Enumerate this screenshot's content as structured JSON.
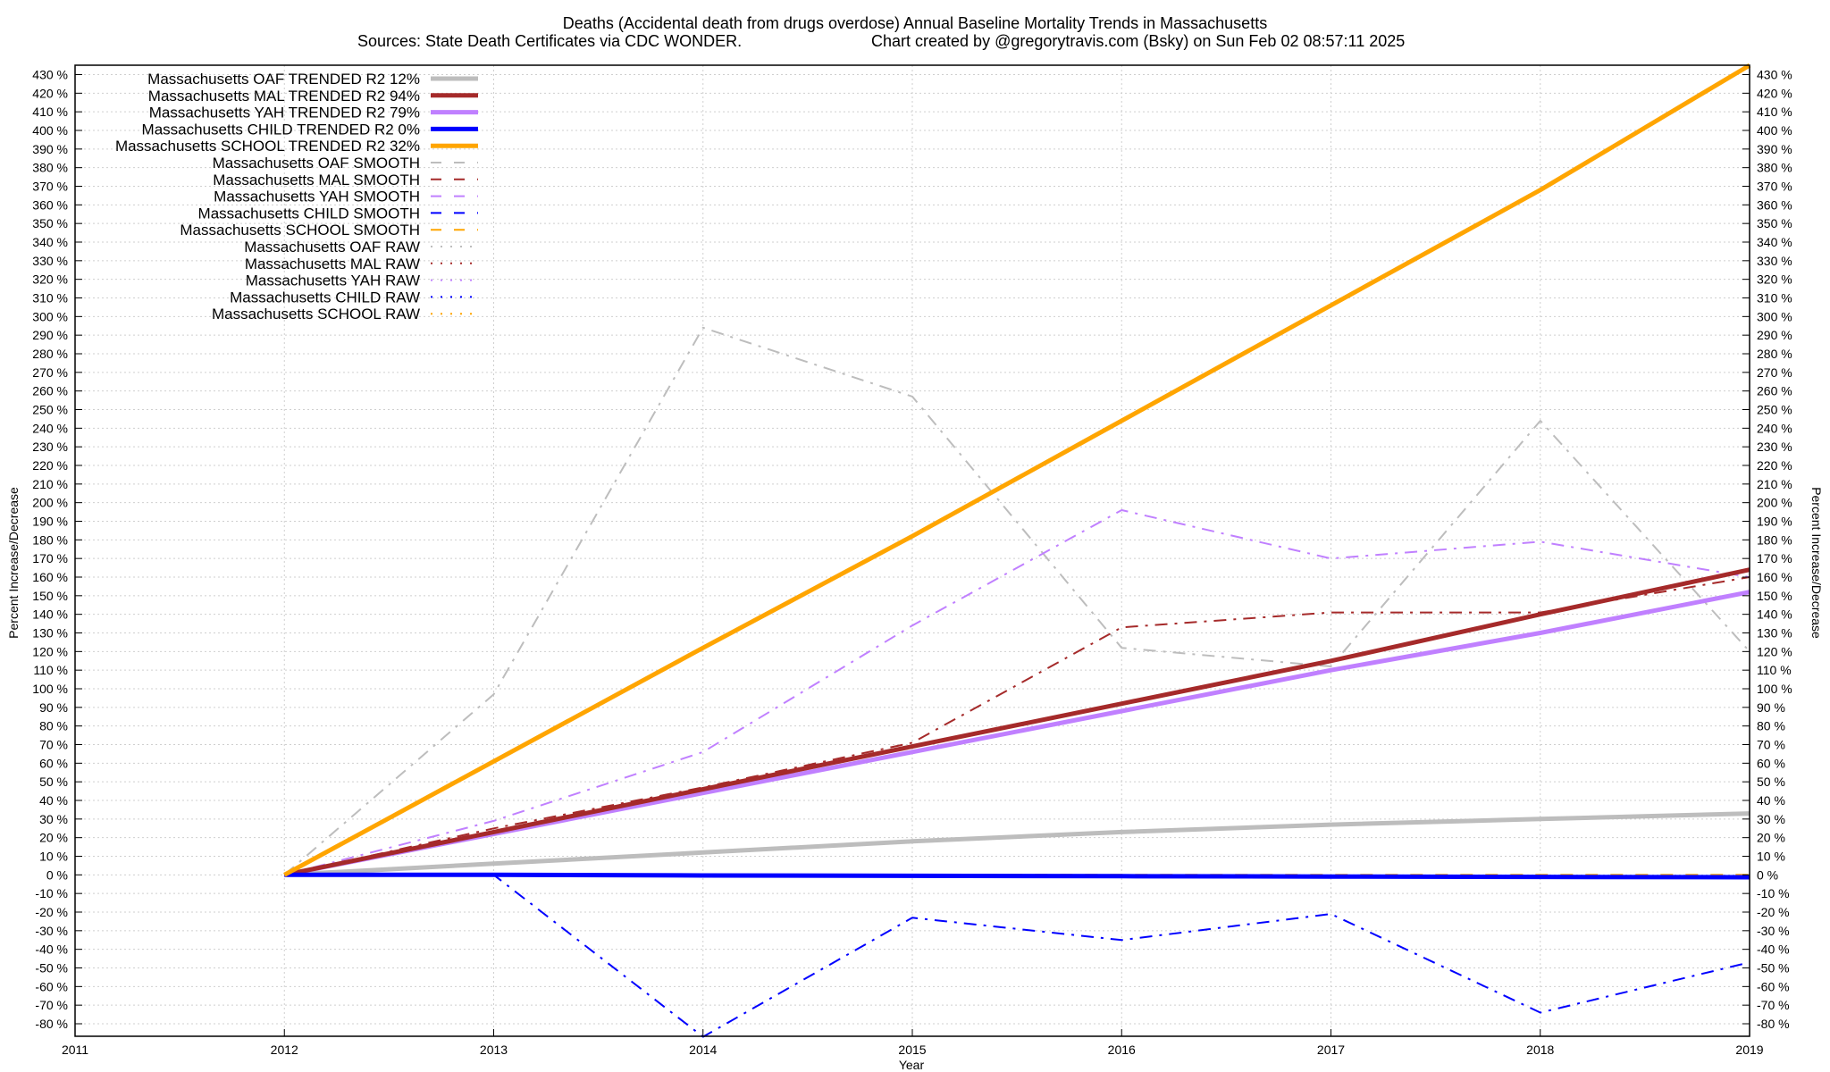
{
  "chart_data": {
    "type": "line",
    "title": "Deaths (Accidental death from drugs overdose)  Annual Baseline Mortality Trends in Massachusetts",
    "subtitle_left": "Sources: State Death Certificates via CDC WONDER.",
    "subtitle_right": "Chart created by @gregorytravis.com (Bsky) on Sun Feb 02 08:57:11 2025",
    "xlabel": "Year",
    "ylabel": "Percent Increase/Decrease",
    "xlim": [
      2011,
      2019
    ],
    "ylim": [
      -88,
      435
    ],
    "x_ticks": [
      2011,
      2012,
      2013,
      2014,
      2015,
      2016,
      2017,
      2018,
      2019
    ],
    "y_ticks": [
      -80,
      -70,
      -60,
      -50,
      -40,
      -30,
      -20,
      -10,
      0,
      10,
      20,
      30,
      40,
      50,
      60,
      70,
      80,
      90,
      100,
      110,
      120,
      130,
      140,
      150,
      160,
      170,
      180,
      190,
      200,
      210,
      220,
      230,
      240,
      250,
      260,
      270,
      280,
      290,
      300,
      310,
      320,
      330,
      340,
      350,
      360,
      370,
      380,
      390,
      400,
      410,
      420,
      430
    ],
    "y_tick_suffix": " %",
    "grid": true,
    "legend_position": "top-left",
    "series": [
      {
        "name": "Massachusetts OAF TRENDED R2  12%",
        "style": "solid",
        "color": "#bdbdbd",
        "width": 5,
        "x": [
          2012,
          2013,
          2014,
          2015,
          2016,
          2017,
          2018,
          2019
        ],
        "y": [
          0,
          6,
          12,
          18,
          23,
          27,
          30,
          33
        ]
      },
      {
        "name": "Massachusetts MAL TRENDED R2  94%",
        "style": "solid",
        "color": "#a52a2a",
        "width": 5,
        "x": [
          2012,
          2013,
          2014,
          2015,
          2016,
          2017,
          2018,
          2019
        ],
        "y": [
          0,
          23,
          46,
          69,
          92,
          115,
          140,
          164
        ]
      },
      {
        "name": "Massachusetts YAH TRENDED R2  79%",
        "style": "solid",
        "color": "#c080ff",
        "width": 5,
        "x": [
          2012,
          2013,
          2014,
          2015,
          2016,
          2017,
          2018,
          2019
        ],
        "y": [
          0,
          22,
          44,
          66,
          88,
          110,
          130,
          152
        ]
      },
      {
        "name": "Massachusetts CHILD TRENDED R2   0%",
        "style": "solid",
        "color": "#0000ff",
        "width": 5,
        "x": [
          2012,
          2013,
          2014,
          2015,
          2016,
          2017,
          2018,
          2019
        ],
        "y": [
          0,
          0,
          -0.3,
          -0.5,
          -0.7,
          -0.9,
          -1.1,
          -1.3
        ]
      },
      {
        "name": "Massachusetts SCHOOL TRENDED R2  32%",
        "style": "solid",
        "color": "#ffa500",
        "width": 5,
        "x": [
          2012,
          2013,
          2014,
          2015,
          2016,
          2017,
          2018,
          2019
        ],
        "y": [
          0,
          61,
          122,
          182,
          244,
          306,
          368,
          435
        ]
      },
      {
        "name": "Massachusetts OAF SMOOTH",
        "style": "dash",
        "color": "#bdbdbd",
        "width": 2,
        "x": [],
        "y": []
      },
      {
        "name": "Massachusetts MAL SMOOTH",
        "style": "dash",
        "color": "#a52a2a",
        "width": 2,
        "x": [],
        "y": []
      },
      {
        "name": "Massachusetts YAH SMOOTH",
        "style": "dash",
        "color": "#c080ff",
        "width": 2,
        "x": [],
        "y": []
      },
      {
        "name": "Massachusetts CHILD SMOOTH",
        "style": "dash",
        "color": "#0000ff",
        "width": 2,
        "x": [],
        "y": []
      },
      {
        "name": "Massachusetts SCHOOL SMOOTH",
        "style": "dash",
        "color": "#ffa500",
        "width": 2,
        "x": [
          2012,
          2013,
          2014,
          2015,
          2016,
          2017,
          2018,
          2019
        ],
        "y": [
          0,
          0,
          0,
          0,
          0,
          0,
          0,
          0
        ]
      },
      {
        "name": "Massachusetts OAF RAW",
        "style": "dashdot",
        "color": "#bdbdbd",
        "width": 2,
        "x": [
          2012,
          2013,
          2014,
          2015,
          2016,
          2017,
          2018,
          2019
        ],
        "y": [
          0,
          97,
          294,
          257,
          122,
          112,
          244,
          120
        ]
      },
      {
        "name": "Massachusetts MAL RAW",
        "style": "dashdot",
        "color": "#a52a2a",
        "width": 2,
        "x": [
          2012,
          2013,
          2014,
          2015,
          2016,
          2017,
          2018,
          2019
        ],
        "y": [
          0,
          25,
          47,
          71,
          133,
          141,
          141,
          160
        ]
      },
      {
        "name": "Massachusetts YAH RAW",
        "style": "dashdot",
        "color": "#c080ff",
        "width": 2,
        "x": [
          2012,
          2013,
          2014,
          2015,
          2016,
          2017,
          2018,
          2019
        ],
        "y": [
          0,
          29,
          66,
          134,
          196,
          170,
          179,
          160
        ]
      },
      {
        "name": "Massachusetts CHILD RAW",
        "style": "dashdot",
        "color": "#0000ff",
        "width": 2,
        "x": [
          2012,
          2013,
          2014,
          2015,
          2016,
          2017,
          2018,
          2019
        ],
        "y": [
          0,
          0,
          -87,
          -23,
          -35,
          -21,
          -74,
          -47
        ]
      },
      {
        "name": "Massachusetts SCHOOL RAW",
        "style": "dashdot",
        "color": "#ffa500",
        "width": 2,
        "x": [],
        "y": []
      }
    ]
  }
}
